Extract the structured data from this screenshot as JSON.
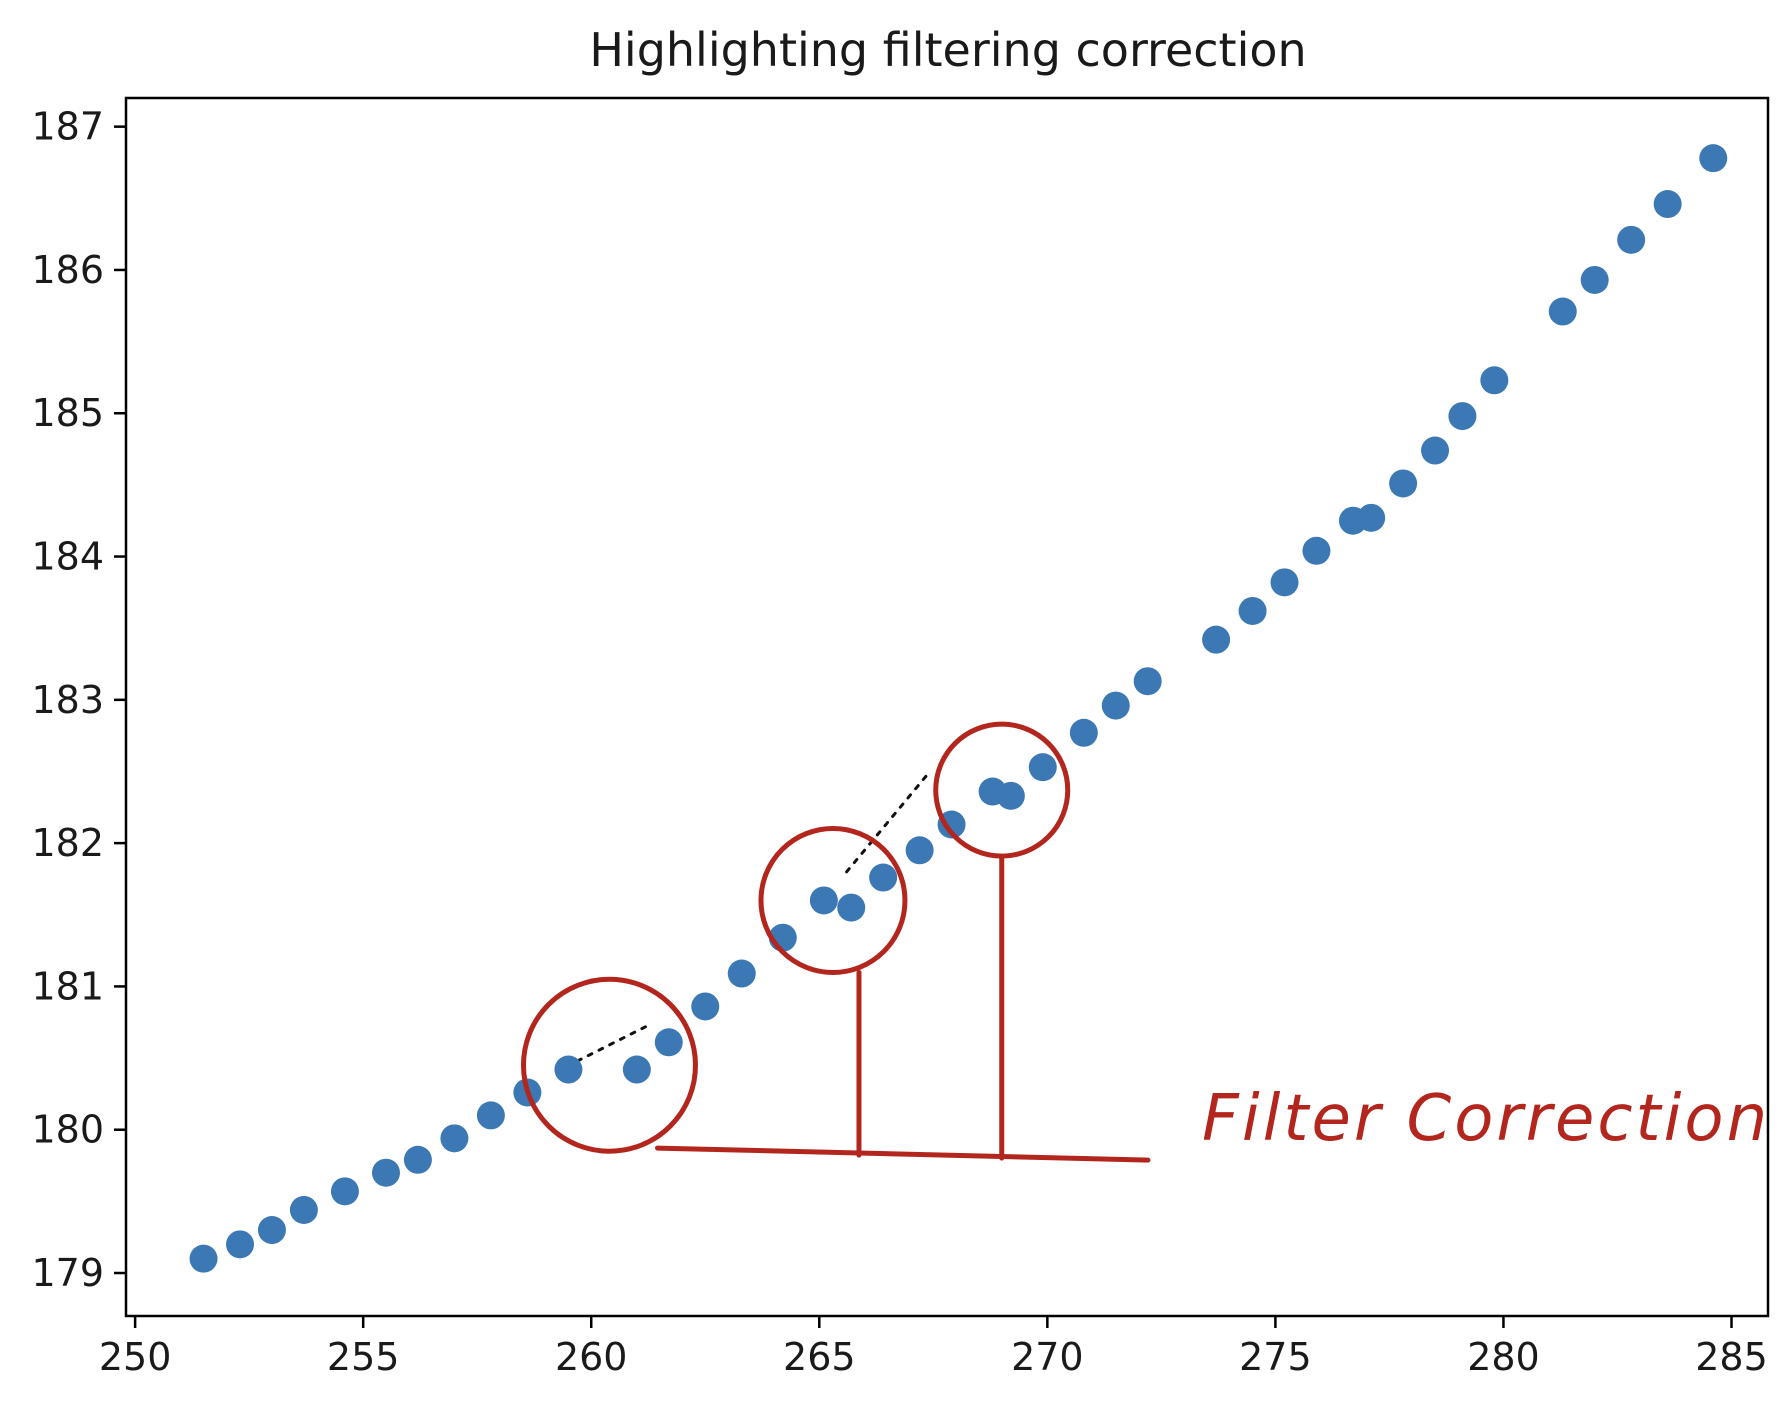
{
  "chart_data": {
    "type": "scatter",
    "title": "Highlighting filtering correction",
    "xlabel": "",
    "ylabel": "",
    "xlim": [
      249.8,
      285.8
    ],
    "ylim": [
      178.7,
      187.2
    ],
    "xticks": [
      250,
      255,
      260,
      265,
      270,
      275,
      280,
      285
    ],
    "yticks": [
      179,
      180,
      181,
      182,
      183,
      184,
      185,
      186,
      187
    ],
    "grid": false,
    "marker_color": "#3c78b4",
    "series": [
      {
        "points": [
          [
            251.5,
            179.1
          ],
          [
            252.3,
            179.2
          ],
          [
            253.0,
            179.3
          ],
          [
            253.7,
            179.44
          ],
          [
            254.6,
            179.57
          ],
          [
            255.5,
            179.7
          ],
          [
            256.2,
            179.79
          ],
          [
            257.0,
            179.94
          ],
          [
            257.8,
            180.1
          ],
          [
            258.6,
            180.26
          ],
          [
            259.5,
            180.42
          ],
          [
            261.0,
            180.42
          ],
          [
            261.7,
            180.61
          ],
          [
            262.5,
            180.86
          ],
          [
            263.3,
            181.09
          ],
          [
            264.2,
            181.34
          ],
          [
            265.1,
            181.6
          ],
          [
            265.7,
            181.55
          ],
          [
            266.4,
            181.76
          ],
          [
            267.2,
            181.95
          ],
          [
            267.9,
            182.13
          ],
          [
            268.8,
            182.36
          ],
          [
            269.2,
            182.33
          ],
          [
            269.9,
            182.53
          ],
          [
            270.8,
            182.77
          ],
          [
            271.5,
            182.96
          ],
          [
            272.2,
            183.13
          ],
          [
            273.7,
            183.42
          ],
          [
            274.5,
            183.62
          ],
          [
            275.2,
            183.82
          ],
          [
            275.9,
            184.04
          ],
          [
            276.7,
            184.25
          ],
          [
            277.1,
            184.27
          ],
          [
            277.8,
            184.51
          ],
          [
            278.5,
            184.74
          ],
          [
            279.1,
            184.98
          ],
          [
            279.8,
            185.23
          ],
          [
            281.3,
            185.71
          ],
          [
            282.0,
            185.93
          ],
          [
            282.8,
            186.21
          ],
          [
            283.6,
            186.46
          ],
          [
            284.6,
            186.78
          ]
        ]
      }
    ],
    "annotations": {
      "label": "Filter Correction",
      "color": "#b3261e",
      "circles_around": [
        [
          260.4,
          180.45
        ],
        [
          265.3,
          181.6
        ],
        [
          269.0,
          182.37
        ]
      ],
      "dotted_trend_segments": [
        [
          [
            259.7,
            180.48
          ],
          [
            261.2,
            180.72
          ]
        ],
        [
          [
            265.6,
            181.8
          ],
          [
            267.4,
            182.49
          ]
        ]
      ]
    }
  }
}
